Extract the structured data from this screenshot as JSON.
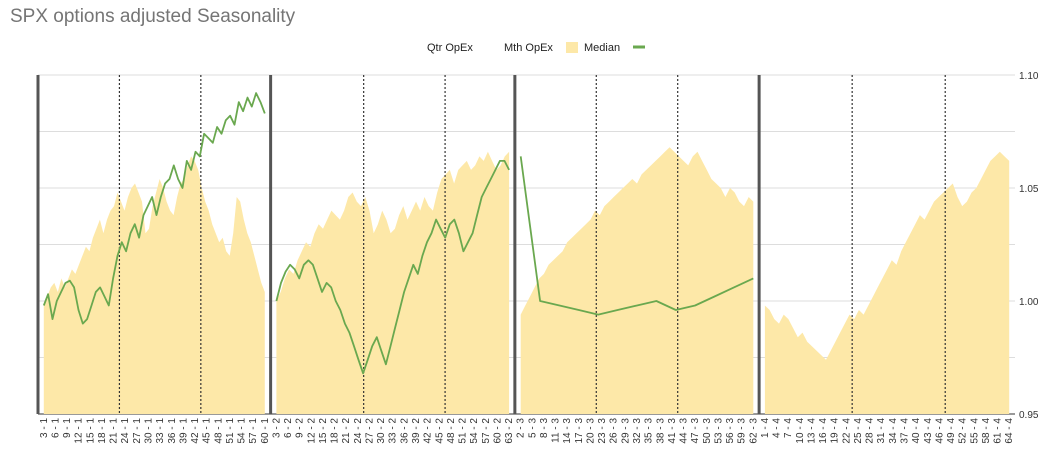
{
  "chart_data": {
    "type": "area",
    "title": "SPX options adjusted Seasonality",
    "legend": {
      "position": "top",
      "items": [
        {
          "name": "Qtr OpEx",
          "kind": "quarter-opex-separator",
          "color": "#555555"
        },
        {
          "name": "Mth OpEx",
          "kind": "month-opex-separator",
          "color": "#333333"
        },
        {
          "name": "Median",
          "kind": "area",
          "color": "#fde8a8"
        },
        {
          "name": "",
          "kind": "line",
          "color": "#6aa84f"
        }
      ]
    },
    "y_axis": {
      "position": "right",
      "ylim": [
        0.95,
        1.1
      ],
      "ticks": [
        "0.95",
        "1.00",
        "1.05",
        "1.10"
      ],
      "gridlines": [
        0.975,
        1.0,
        1.025,
        1.05,
        1.075,
        1.1
      ]
    },
    "x_ticks": [
      "3 - 1",
      "6 - 1",
      "9 - 1",
      "12 - 1",
      "15 - 1",
      "18 - 1",
      "21 - 1",
      "24 - 1",
      "27 - 1",
      "30 - 1",
      "33 - 1",
      "36 - 1",
      "39 - 1",
      "42 - 1",
      "45 - 1",
      "48 - 1",
      "51 - 1",
      "54 - 1",
      "57 - 1",
      "60 - 1",
      "3 - 2",
      "6 - 2",
      "9 - 2",
      "12 - 2",
      "15 - 2",
      "18 - 2",
      "21 - 2",
      "24 - 2",
      "27 - 2",
      "30 - 2",
      "33 - 2",
      "36 - 2",
      "39 - 2",
      "42 - 2",
      "45 - 2",
      "48 - 2",
      "51 - 2",
      "54 - 2",
      "57 - 2",
      "60 - 2",
      "63 - 2",
      "2 - 3",
      "5 - 3",
      "8 - 3",
      "11 - 3",
      "14 - 3",
      "17 - 3",
      "20 - 3",
      "23 - 3",
      "26 - 3",
      "29 - 3",
      "32 - 3",
      "35 - 3",
      "38 - 3",
      "41 - 3",
      "44 - 3",
      "47 - 3",
      "50 - 3",
      "53 - 3",
      "56 - 3",
      "59 - 3",
      "62 - 3",
      "1 - 4",
      "4 - 4",
      "7 - 4",
      "10 - 4",
      "13 - 4",
      "16 - 4",
      "19 - 4",
      "22 - 4",
      "25 - 4",
      "28 - 4",
      "31 - 4",
      "34 - 4",
      "37 - 4",
      "40 - 4",
      "43 - 4",
      "46 - 4",
      "49 - 4",
      "52 - 4",
      "55 - 4",
      "58 - 4",
      "61 - 4",
      "64 - 4"
    ],
    "quarter_opex_after_tick": [
      -1,
      19,
      40,
      61
    ],
    "month_opex_after_tick": [
      6,
      13,
      27,
      34,
      47,
      54,
      69,
      77
    ],
    "median": {
      "segments": [
        {
          "start_tick": 0,
          "end_tick": 19,
          "values": [
            0.998,
            1.002,
            1.006,
            1.008,
            1.004,
            1.01,
            1.006,
            1.01,
            1.014,
            1.012,
            1.016,
            1.02,
            1.024,
            1.022,
            1.028,
            1.032,
            1.036,
            1.03,
            1.036,
            1.04,
            1.042,
            1.048,
            1.044,
            1.04,
            1.046,
            1.05,
            1.052,
            1.048,
            1.044,
            1.03,
            1.032,
            1.042,
            1.048,
            1.054,
            1.05,
            1.044,
            1.04,
            1.038,
            1.046,
            1.052,
            1.054,
            1.06,
            1.064,
            1.062,
            1.058,
            1.05,
            1.044,
            1.04,
            1.034,
            1.03,
            1.026,
            1.028,
            1.022,
            1.02,
            1.03,
            1.046,
            1.044,
            1.036,
            1.03,
            1.026,
            1.02,
            1.014,
            1.008,
            1.004
          ]
        },
        {
          "start_tick": 20,
          "end_tick": 40,
          "values": [
            1.0,
            1.004,
            1.01,
            1.014,
            1.012,
            1.018,
            1.022,
            1.026,
            1.024,
            1.03,
            1.034,
            1.032,
            1.036,
            1.04,
            1.038,
            1.036,
            1.04,
            1.046,
            1.048,
            1.044,
            1.042,
            1.046,
            1.04,
            1.03,
            1.034,
            1.04,
            1.036,
            1.03,
            1.032,
            1.038,
            1.042,
            1.036,
            1.04,
            1.044,
            1.04,
            1.046,
            1.042,
            1.04,
            1.048,
            1.054,
            1.056,
            1.058,
            1.052,
            1.058,
            1.06,
            1.062,
            1.058,
            1.06,
            1.064,
            1.062,
            1.066,
            1.062,
            1.058,
            1.06,
            1.064,
            1.066
          ]
        },
        {
          "start_tick": 41,
          "end_tick": 61,
          "values": [
            0.994,
            0.998,
            1.002,
            1.006,
            1.01,
            1.012,
            1.016,
            1.018,
            1.02,
            1.022,
            1.026,
            1.028,
            1.03,
            1.032,
            1.034,
            1.036,
            1.04,
            1.038,
            1.042,
            1.044,
            1.046,
            1.048,
            1.05,
            1.052,
            1.054,
            1.052,
            1.056,
            1.058,
            1.06,
            1.062,
            1.064,
            1.066,
            1.068,
            1.066,
            1.064,
            1.062,
            1.06,
            1.064,
            1.066,
            1.062,
            1.058,
            1.054,
            1.052,
            1.05,
            1.046,
            1.05,
            1.048,
            1.044,
            1.042,
            1.046,
            1.044
          ]
        },
        {
          "start_tick": 62,
          "end_tick": 83,
          "values": [
            0.998,
            0.996,
            0.992,
            0.99,
            0.994,
            0.992,
            0.988,
            0.984,
            0.986,
            0.982,
            0.98,
            0.978,
            0.976,
            0.974,
            0.978,
            0.982,
            0.986,
            0.99,
            0.994,
            0.992,
            0.996,
            0.994,
            0.998,
            1.002,
            1.006,
            1.01,
            1.014,
            1.018,
            1.016,
            1.022,
            1.026,
            1.03,
            1.034,
            1.038,
            1.036,
            1.04,
            1.044,
            1.046,
            1.048,
            1.05,
            1.052,
            1.046,
            1.042,
            1.044,
            1.048,
            1.05,
            1.054,
            1.058,
            1.062,
            1.064,
            1.066,
            1.064,
            1.062
          ]
        }
      ]
    },
    "line": {
      "segments": [
        {
          "start_tick": 0,
          "end_tick": 19,
          "values": [
            0.998,
            1.003,
            0.992,
            1.0,
            1.004,
            1.008,
            1.009,
            1.006,
            0.996,
            0.99,
            0.992,
            0.998,
            1.004,
            1.006,
            1.002,
            0.998,
            1.01,
            1.02,
            1.026,
            1.022,
            1.03,
            1.034,
            1.028,
            1.038,
            1.042,
            1.046,
            1.038,
            1.046,
            1.052,
            1.054,
            1.06,
            1.054,
            1.05,
            1.062,
            1.058,
            1.066,
            1.064,
            1.074,
            1.072,
            1.07,
            1.077,
            1.074,
            1.08,
            1.082,
            1.078,
            1.088,
            1.084,
            1.09,
            1.086,
            1.092,
            1.088,
            1.083
          ]
        },
        {
          "start_tick": 20,
          "end_tick": 40,
          "values": [
            1.0,
            1.008,
            1.013,
            1.016,
            1.014,
            1.01,
            1.016,
            1.018,
            1.016,
            1.01,
            1.004,
            1.008,
            1.006,
            1.0,
            0.996,
            0.99,
            0.986,
            0.98,
            0.974,
            0.968,
            0.974,
            0.98,
            0.984,
            0.978,
            0.972,
            0.98,
            0.988,
            0.996,
            1.004,
            1.01,
            1.016,
            1.012,
            1.02,
            1.026,
            1.03,
            1.036,
            1.032,
            1.028,
            1.034,
            1.036,
            1.03,
            1.022,
            1.026,
            1.03,
            1.038,
            1.046,
            1.05,
            1.054,
            1.058,
            1.062,
            1.062,
            1.058
          ]
        },
        {
          "start_tick": 41,
          "end_tick": 61,
          "values": [
            1.064,
            1.0,
            0.998,
            0.996,
            0.994,
            0.996,
            0.998,
            1.0,
            0.996,
            0.998,
            1.002,
            1.006,
            1.01
          ]
        }
      ]
    }
  }
}
